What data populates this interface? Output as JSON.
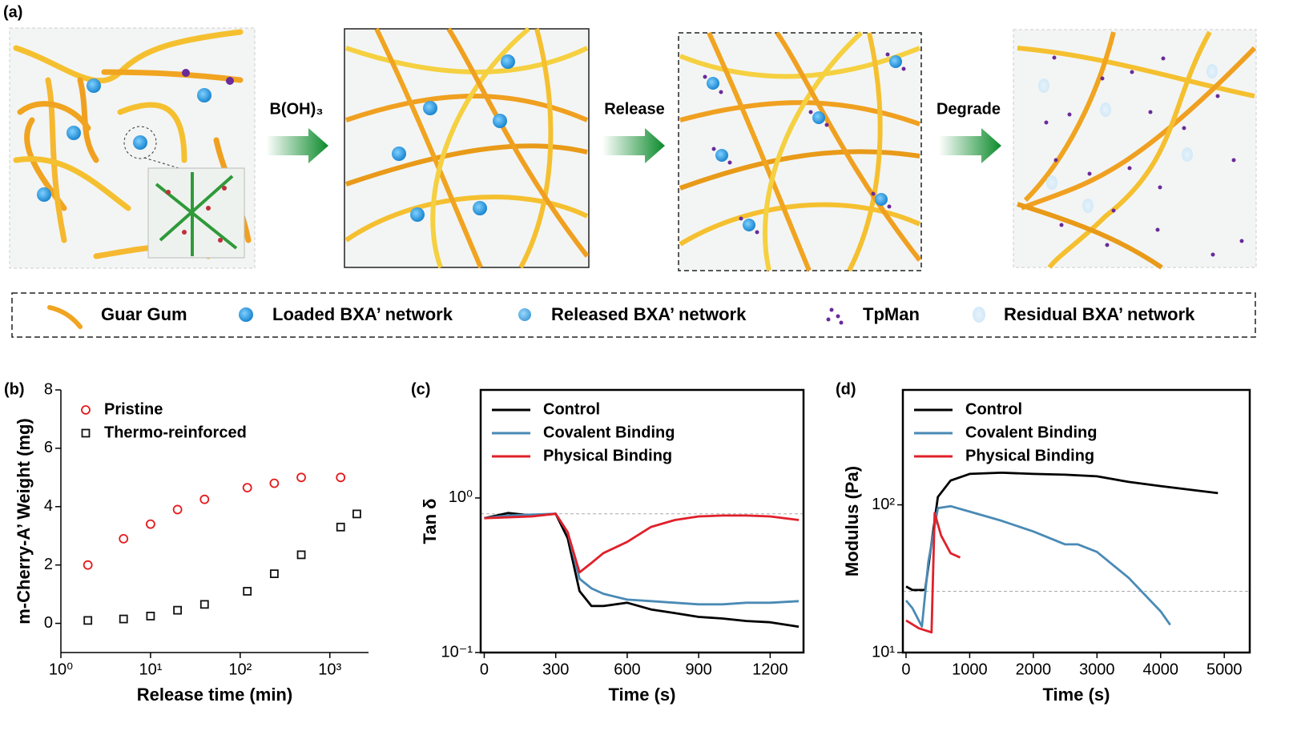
{
  "panel_a": {
    "label": "(a)",
    "steps": [
      "B(OH)₃",
      "Release",
      "Degrade"
    ],
    "legend": [
      "Guar Gum",
      "Loaded BXA’ network",
      "Released BXA’ network",
      "TpMan",
      "Residual BXA’ network"
    ]
  },
  "chart_data": [
    {
      "type": "scatter",
      "panel_label": "(b)",
      "xlabel": "Release time (min)",
      "ylabel": "m-Cherry-A’ Weight (mg)",
      "xscale": "log",
      "xlim": [
        1,
        2700
      ],
      "xticks": [
        {
          "value": 1,
          "label": "10⁰"
        },
        {
          "value": 10,
          "label": "10¹"
        },
        {
          "value": 100,
          "label": "10²"
        },
        {
          "value": 1000,
          "label": "10³"
        }
      ],
      "ylim": [
        -1,
        8
      ],
      "yticks": [
        0,
        2,
        4,
        6,
        8
      ],
      "legend": "upper left",
      "box": false,
      "series": [
        {
          "name": "Pristine",
          "color": "#e31a1c",
          "marker": "circle",
          "x": [
            2,
            5,
            10,
            20,
            40,
            120,
            240,
            480,
            1320
          ],
          "values": [
            2.0,
            2.9,
            3.4,
            3.9,
            4.25,
            4.65,
            4.8,
            5.0,
            5.0
          ]
        },
        {
          "name": "Thermo-reinforced",
          "color": "#111111",
          "marker": "square",
          "x": [
            2,
            5,
            10,
            20,
            40,
            120,
            240,
            480,
            1320,
            2000
          ],
          "values": [
            0.1,
            0.15,
            0.25,
            0.45,
            0.65,
            1.1,
            1.7,
            2.35,
            3.3,
            3.75
          ]
        }
      ]
    },
    {
      "type": "line",
      "panel_label": "(c)",
      "xlabel": "Time (s)",
      "ylabel": "Tan δ",
      "xlim": [
        -15,
        1340
      ],
      "xticks": [
        0,
        300,
        600,
        900,
        1200
      ],
      "yscale": "log",
      "ylim": [
        0.1,
        5
      ],
      "yticks": [
        {
          "value": 0.1,
          "label": "10⁻¹"
        },
        {
          "value": 1,
          "label": "10⁰"
        }
      ],
      "hlines": [
        0.79
      ],
      "legend": "upper left",
      "box": true,
      "series": [
        {
          "name": "Control",
          "color": "#000000",
          "x": [
            0,
            100,
            200,
            300,
            350,
            400,
            450,
            500,
            600,
            700,
            800,
            900,
            1000,
            1100,
            1200,
            1320
          ],
          "values": [
            0.74,
            0.8,
            0.77,
            0.79,
            0.55,
            0.25,
            0.2,
            0.2,
            0.21,
            0.19,
            0.18,
            0.17,
            0.166,
            0.16,
            0.157,
            0.147
          ]
        },
        {
          "name": "Covalent Binding",
          "color": "#4a8ab5",
          "x": [
            0,
            100,
            200,
            300,
            350,
            400,
            450,
            500,
            600,
            700,
            800,
            900,
            1000,
            1100,
            1200,
            1320
          ],
          "values": [
            0.74,
            0.77,
            0.78,
            0.79,
            0.6,
            0.3,
            0.26,
            0.24,
            0.22,
            0.215,
            0.21,
            0.205,
            0.205,
            0.21,
            0.21,
            0.215
          ]
        },
        {
          "name": "Physical Binding",
          "color": "#e0202a",
          "x": [
            0,
            100,
            200,
            300,
            350,
            400,
            450,
            500,
            600,
            700,
            800,
            900,
            1000,
            1100,
            1200,
            1320
          ],
          "values": [
            0.74,
            0.75,
            0.76,
            0.79,
            0.6,
            0.33,
            0.38,
            0.44,
            0.52,
            0.65,
            0.72,
            0.76,
            0.77,
            0.77,
            0.76,
            0.72
          ]
        }
      ]
    },
    {
      "type": "line",
      "panel_label": "(d)",
      "xlabel": "Time (s)",
      "ylabel": "Modulus (Pa)",
      "xlim": [
        -50,
        5400
      ],
      "xticks": [
        0,
        1000,
        2000,
        3000,
        4000,
        5000
      ],
      "yscale": "log",
      "ylim": [
        10,
        600
      ],
      "yticks": [
        {
          "value": 10,
          "label": "10¹"
        },
        {
          "value": 100,
          "label": "10²"
        }
      ],
      "hlines": [
        26
      ],
      "legend": "upper left",
      "box": true,
      "series": [
        {
          "name": "Control",
          "color": "#000000",
          "x": [
            0,
            100,
            300,
            400,
            500,
            700,
            1000,
            1500,
            2000,
            2500,
            3000,
            3500,
            4000,
            4500,
            4900
          ],
          "values": [
            28,
            26.5,
            26.5,
            55,
            113,
            146,
            162,
            165,
            162,
            160,
            156,
            143,
            134,
            126,
            120
          ]
        },
        {
          "name": "Covalent Binding",
          "color": "#4a8ab5",
          "x": [
            0,
            100,
            250,
            350,
            500,
            700,
            1000,
            1500,
            2000,
            2500,
            2700,
            3000,
            3500,
            4000,
            4150
          ],
          "values": [
            22.5,
            20,
            15,
            41,
            95,
            98,
            90,
            78,
            66,
            54,
            54,
            48,
            32,
            19,
            15.4
          ]
        },
        {
          "name": "Physical Binding",
          "color": "#e0202a",
          "x": [
            0,
            200,
            400,
            450,
            550,
            700,
            850
          ],
          "values": [
            16.5,
            14.6,
            13.7,
            88,
            62,
            47,
            44
          ]
        }
      ]
    }
  ]
}
